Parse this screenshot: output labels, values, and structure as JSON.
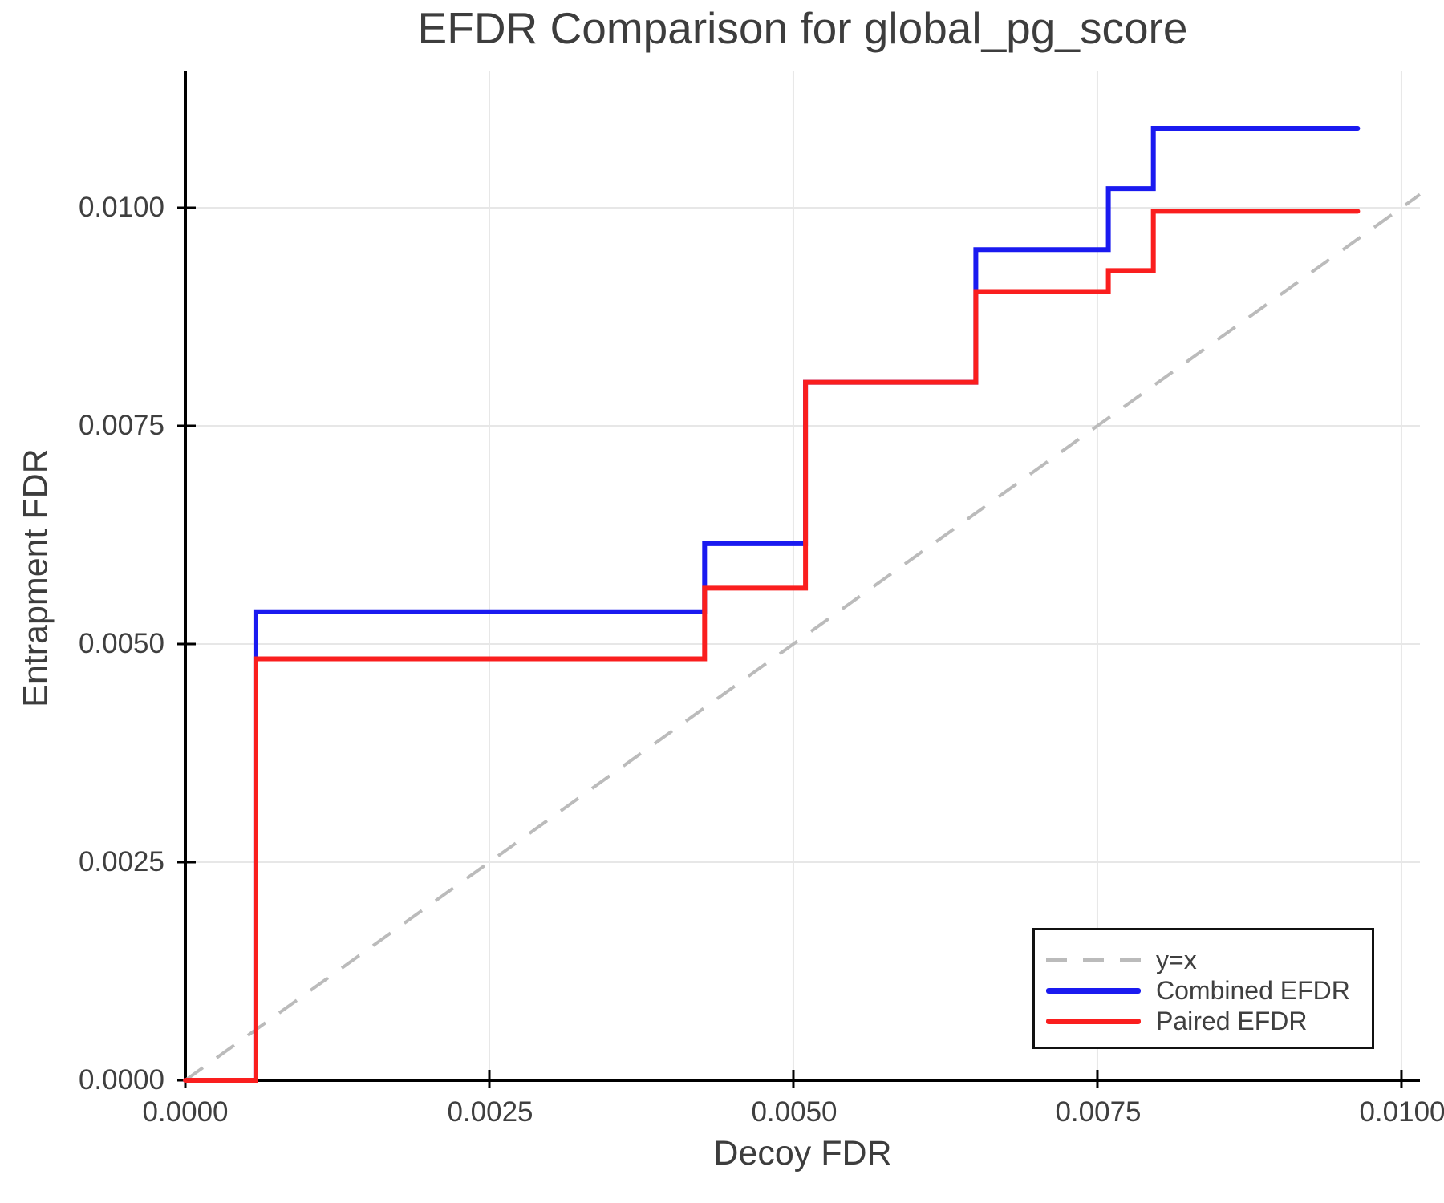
{
  "chart_data": {
    "type": "line",
    "title": "EFDR Comparison for global_pg_score",
    "xlabel": "Decoy FDR",
    "ylabel": "Entrapment FDR",
    "xlim": [
      0,
      0.010152
    ],
    "ylim": [
      0,
      0.011572
    ],
    "grid": true,
    "x_ticks": [
      0.0,
      0.0025,
      0.005,
      0.0075,
      0.01
    ],
    "x_tick_labels": [
      "0.0000",
      "0.0025",
      "0.0050",
      "0.0075",
      "0.0100"
    ],
    "y_ticks": [
      0.0,
      0.0025,
      0.005,
      0.0075,
      0.01
    ],
    "y_tick_labels": [
      "0.0000",
      "0.0025",
      "0.0050",
      "0.0075",
      "0.0100"
    ],
    "legend_position": "lower right",
    "series": [
      {
        "name": "y=x",
        "style": "dashed",
        "color": "#bbbbbb",
        "width": 4,
        "points": [
          [
            0,
            0
          ],
          [
            0.010152,
            0.010152
          ]
        ]
      },
      {
        "name": "Combined EFDR",
        "style": "solid",
        "color": "#1a1af0",
        "width": 6,
        "points": [
          [
            0,
            0
          ],
          [
            0.00058,
            0
          ],
          [
            0.00058,
            0.00537
          ],
          [
            0.00427,
            0.00537
          ],
          [
            0.00427,
            0.00615
          ],
          [
            0.0051,
            0.00615
          ],
          [
            0.0051,
            0.008
          ],
          [
            0.0065,
            0.008
          ],
          [
            0.0065,
            0.00952
          ],
          [
            0.00759,
            0.00952
          ],
          [
            0.00759,
            0.01022
          ],
          [
            0.00796,
            0.01022
          ],
          [
            0.00796,
            0.01091
          ],
          [
            0.00964,
            0.01091
          ]
        ]
      },
      {
        "name": "Paired EFDR",
        "style": "solid",
        "color": "#fa1e1e",
        "width": 6,
        "points": [
          [
            0,
            0
          ],
          [
            0.00058,
            0
          ],
          [
            0.00058,
            0.00483
          ],
          [
            0.00427,
            0.00483
          ],
          [
            0.00427,
            0.00564
          ],
          [
            0.0051,
            0.00564
          ],
          [
            0.0051,
            0.008
          ],
          [
            0.0065,
            0.008
          ],
          [
            0.0065,
            0.00904
          ],
          [
            0.00759,
            0.00904
          ],
          [
            0.00759,
            0.00928
          ],
          [
            0.00796,
            0.00928
          ],
          [
            0.00796,
            0.00996
          ],
          [
            0.00964,
            0.00996
          ]
        ]
      }
    ],
    "colors": {
      "grid": "#e7e7e7",
      "spine": "#000000",
      "text": "#3f3f3f",
      "diagonal": "#bbbbbb",
      "combined": "#1a1af0",
      "paired": "#fa1e1e"
    }
  },
  "legend": {
    "items": [
      {
        "label": "y=x",
        "color": "#bbbbbb",
        "dashed": true
      },
      {
        "label": "Combined EFDR",
        "color": "#1a1af0",
        "dashed": false
      },
      {
        "label": "Paired EFDR",
        "color": "#fa1e1e",
        "dashed": false
      }
    ]
  }
}
